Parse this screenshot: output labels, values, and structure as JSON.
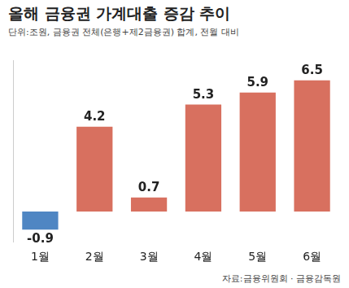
{
  "chart_data": {
    "type": "bar",
    "title": "올해 금융권 가계대출 증감 추이",
    "subtitle": "단위:조원, 금융권 전체(은행+제2금융권) 합계, 전월 대비",
    "source": "자료:금융위원회 · 금융감독원",
    "categories": [
      "1월",
      "2월",
      "3월",
      "4월",
      "5월",
      "6월"
    ],
    "values": [
      -0.9,
      4.2,
      0.7,
      5.3,
      5.9,
      6.5
    ],
    "colors": [
      "#4f86c3",
      "#d8705f",
      "#d8705f",
      "#d8705f",
      "#d8705f",
      "#d8705f"
    ],
    "ylim": [
      -1.5,
      7.5
    ],
    "grid": false,
    "data_labels": true,
    "tick_labels": "x"
  }
}
